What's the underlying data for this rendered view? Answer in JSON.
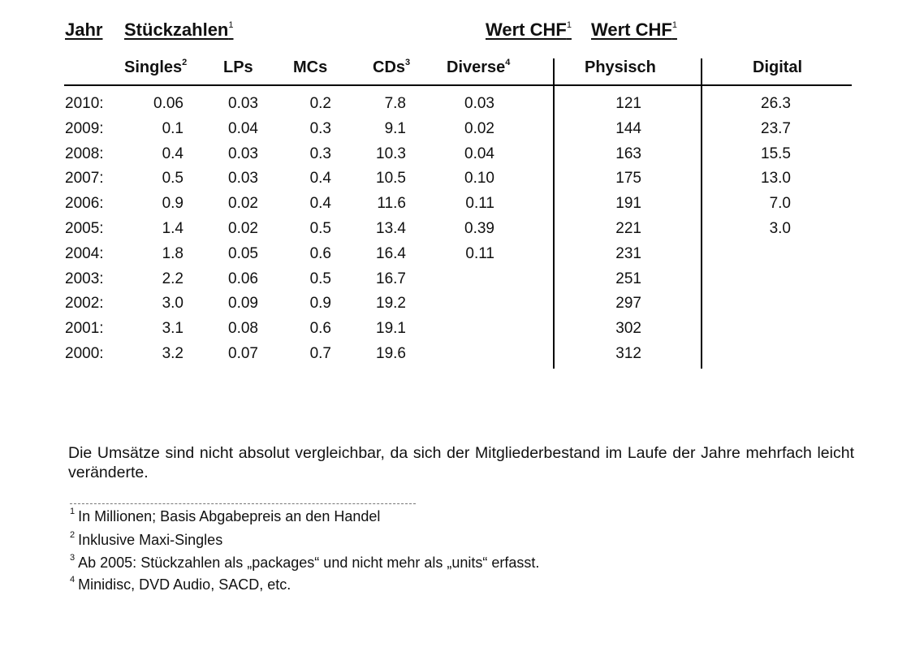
{
  "headers": {
    "jahr": "Jahr",
    "stueckzahlen": "Stückzahlen",
    "stueckzahlen_sup": "1",
    "wert_chf_1": "Wert CHF",
    "wert_chf_1_sup": "1",
    "wert_chf_2": "Wert CHF",
    "wert_chf_2_sup": "1"
  },
  "subheaders": {
    "singles": "Singles",
    "singles_sup": "2",
    "lps": "LPs",
    "mcs": "MCs",
    "cds": "CDs",
    "cds_sup": "3",
    "diverse": "Diverse",
    "diverse_sup": "4",
    "physisch": "Physisch",
    "digital": "Digital"
  },
  "rows": [
    {
      "year": "2010:",
      "singles": "0.06",
      "lps": "0.03",
      "mcs": "0.2",
      "cds": "7.8",
      "diverse": "0.03",
      "physisch": "121",
      "digital": "26.3"
    },
    {
      "year": "2009:",
      "singles": "0.1",
      "lps": "0.04",
      "mcs": "0.3",
      "cds": "9.1",
      "diverse": "0.02",
      "physisch": "144",
      "digital": "23.7"
    },
    {
      "year": "2008:",
      "singles": "0.4",
      "lps": "0.03",
      "mcs": "0.3",
      "cds": "10.3",
      "diverse": "0.04",
      "physisch": "163",
      "digital": "15.5"
    },
    {
      "year": "2007:",
      "singles": "0.5",
      "lps": "0.03",
      "mcs": "0.4",
      "cds": "10.5",
      "diverse": "0.10",
      "physisch": "175",
      "digital": "13.0"
    },
    {
      "year": "2006:",
      "singles": "0.9",
      "lps": "0.02",
      "mcs": "0.4",
      "cds": "11.6",
      "diverse": "0.11",
      "physisch": "191",
      "digital": "7.0"
    },
    {
      "year": "2005:",
      "singles": "1.4",
      "lps": "0.02",
      "mcs": "0.5",
      "cds": "13.4",
      "diverse": "0.39",
      "physisch": "221",
      "digital": "3.0"
    },
    {
      "year": "2004:",
      "singles": "1.8",
      "lps": "0.05",
      "mcs": "0.6",
      "cds": "16.4",
      "diverse": "0.11",
      "physisch": "231",
      "digital": ""
    },
    {
      "year": "2003:",
      "singles": "2.2",
      "lps": "0.06",
      "mcs": "0.5",
      "cds": "16.7",
      "diverse": "",
      "physisch": "251",
      "digital": ""
    },
    {
      "year": "2002:",
      "singles": "3.0",
      "lps": "0.09",
      "mcs": "0.9",
      "cds": "19.2",
      "diverse": "",
      "physisch": "297",
      "digital": ""
    },
    {
      "year": "2001:",
      "singles": "3.1",
      "lps": "0.08",
      "mcs": "0.6",
      "cds": "19.1",
      "diverse": "",
      "physisch": "302",
      "digital": ""
    },
    {
      "year": "2000:",
      "singles": "3.2",
      "lps": "0.07",
      "mcs": "0.7",
      "cds": "19.6",
      "diverse": "",
      "physisch": "312",
      "digital": ""
    }
  ],
  "note": "Die Umsätze sind nicht absolut vergleichbar, da sich der Mitgliederbestand im Laufe der Jahre mehrfach leicht veränderte.",
  "footnotes": [
    {
      "num": "1",
      "text": "In Millionen; Basis Abgabepreis an den Handel"
    },
    {
      "num": "2",
      "text": "Inklusive Maxi-Singles"
    },
    {
      "num": "3",
      "text": "Ab 2005: Stückzahlen als „packages“ und nicht mehr als „units“ erfasst."
    },
    {
      "num": "4",
      "text": "Minidisc, DVD Audio, SACD, etc."
    }
  ]
}
